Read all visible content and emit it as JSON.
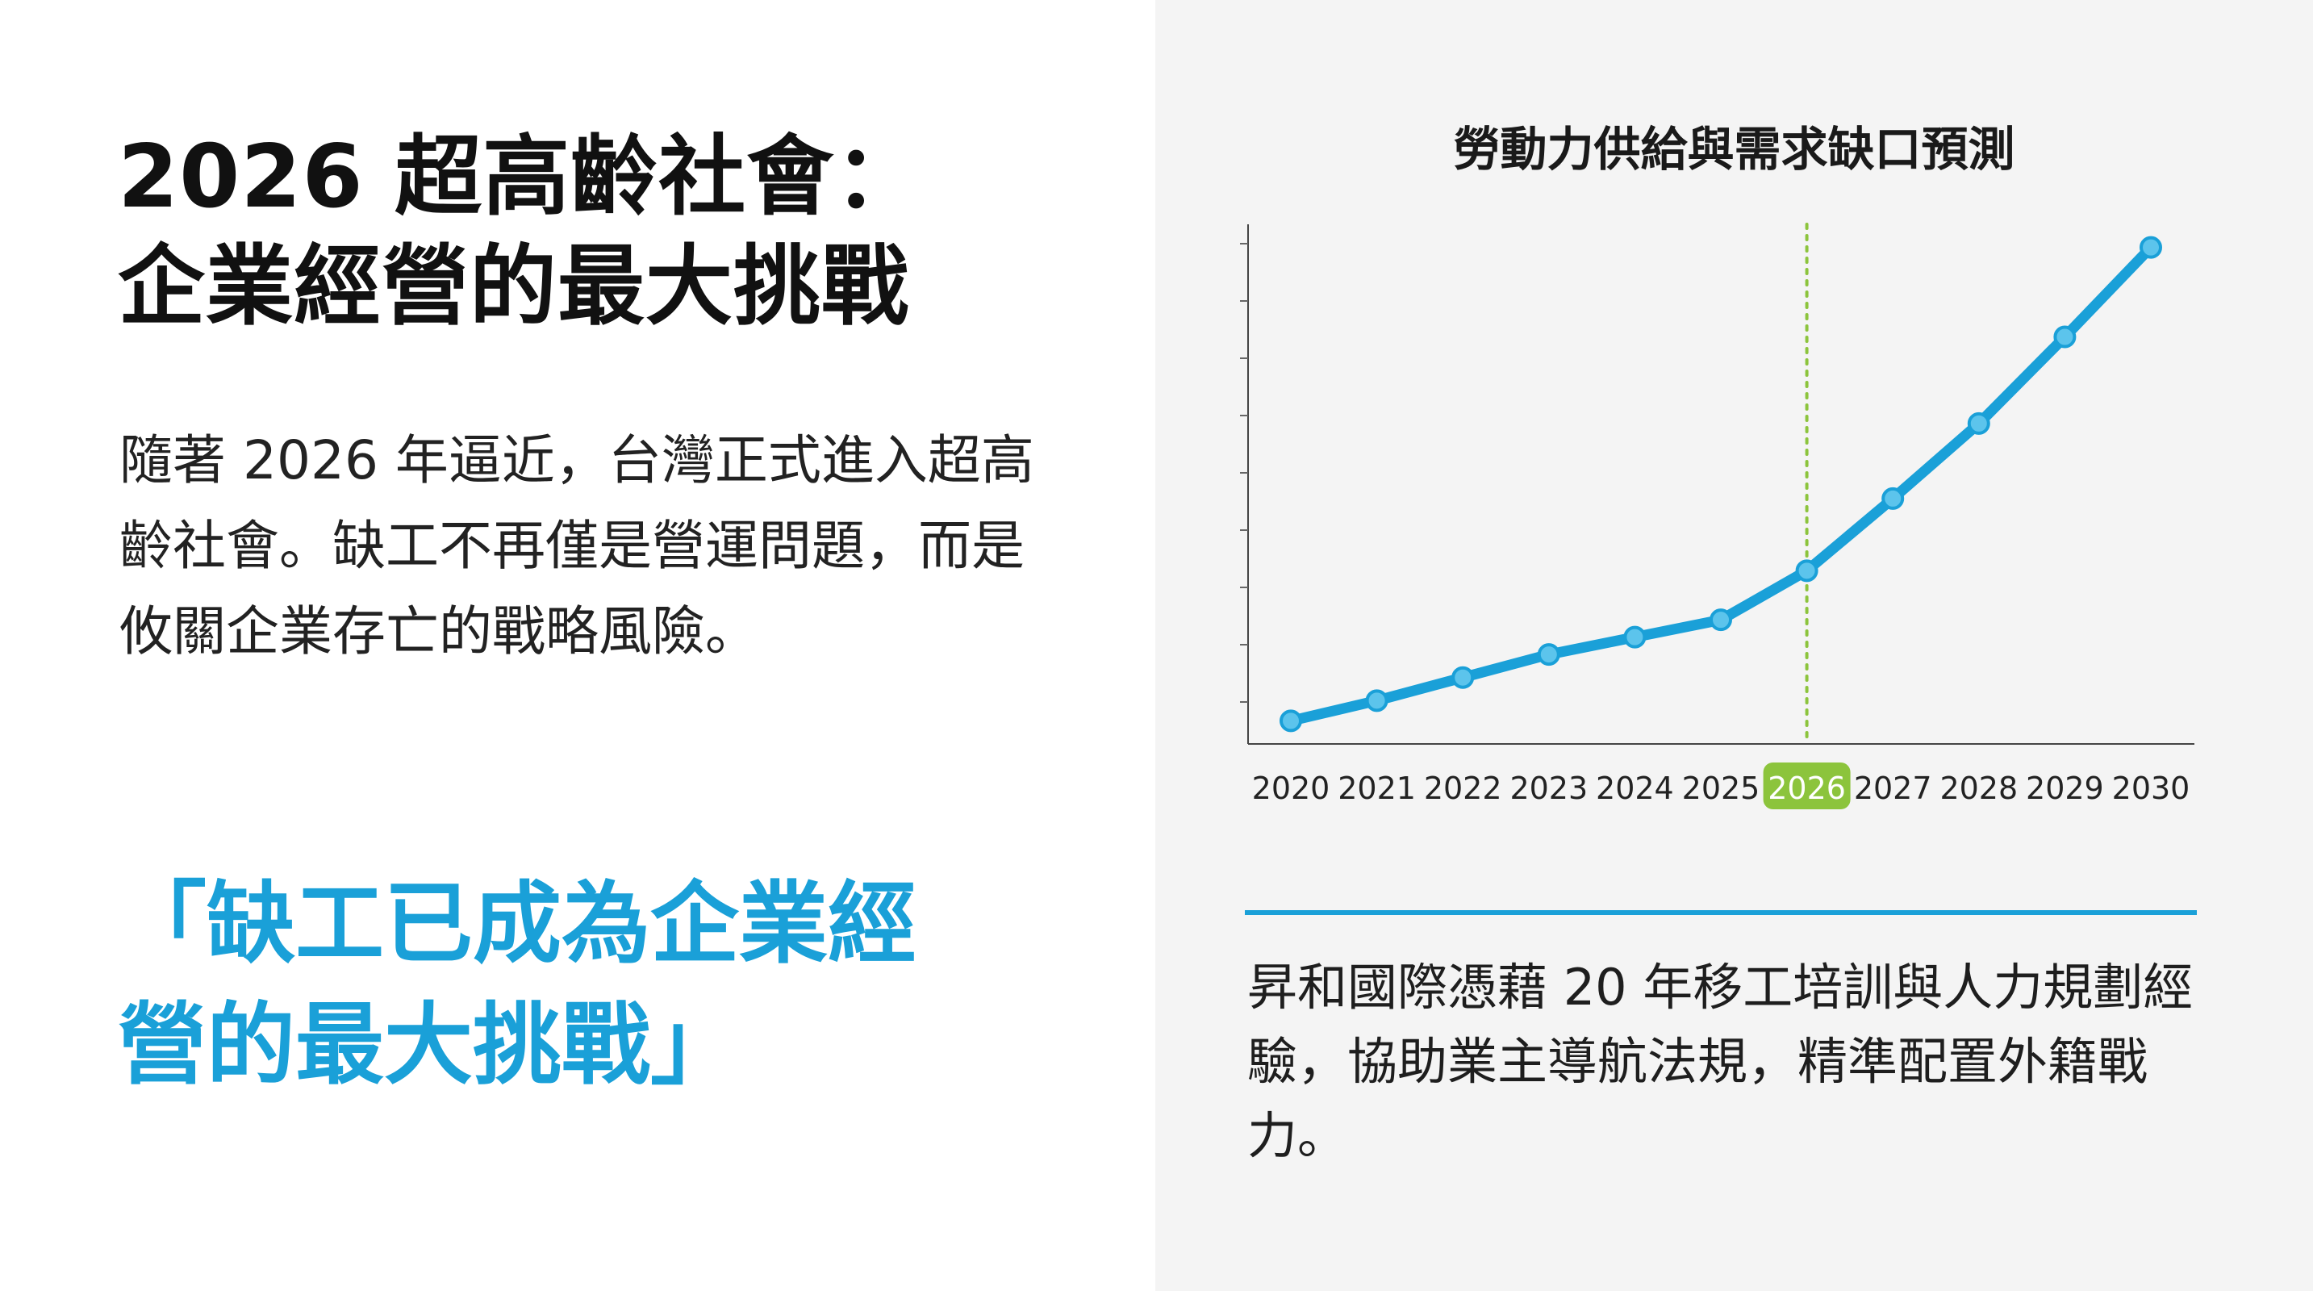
{
  "title": {
    "line1": "2026 超高齡社會：",
    "line2": "企業經營的最大挑戰"
  },
  "intro": "隨著 2026 年逼近，台灣正式進入超高齡社會。缺工不再僅是營運問題，而是攸關企業存亡的戰略風險。",
  "quote": {
    "line1": "「缺工已成為企業經",
    "line2": "營的最大挑戰」"
  },
  "bottom_text": "昇和國際憑藉 20 年移工培訓與人力規劃經驗，協助業主導航法規，精準配置外籍戰力。",
  "colors": {
    "accent_blue": "#1aa0d8",
    "highlight_green": "#8cc43c",
    "left_background": "#ffffff",
    "right_background": "#f4f4f4"
  },
  "chart_data": {
    "type": "line",
    "title": "勞動力供給與需求缺口預測",
    "x": [
      "2020",
      "2021",
      "2022",
      "2023",
      "2024",
      "2025",
      "2026",
      "2027",
      "2028",
      "2029",
      "2030"
    ],
    "series": [
      {
        "values": [
          4,
          7.5,
          11.5,
          15.5,
          18.5,
          21.5,
          30,
          42.5,
          55.5,
          70.5,
          86
        ]
      }
    ],
    "ylim": [
      0,
      90
    ],
    "y_ticks_labeled": false,
    "highlight": {
      "x": "2026",
      "marker": "dotted vertical line",
      "color": "#8cc43c"
    },
    "xlabel": "",
    "ylabel": "",
    "grid": false,
    "legend": "none"
  }
}
